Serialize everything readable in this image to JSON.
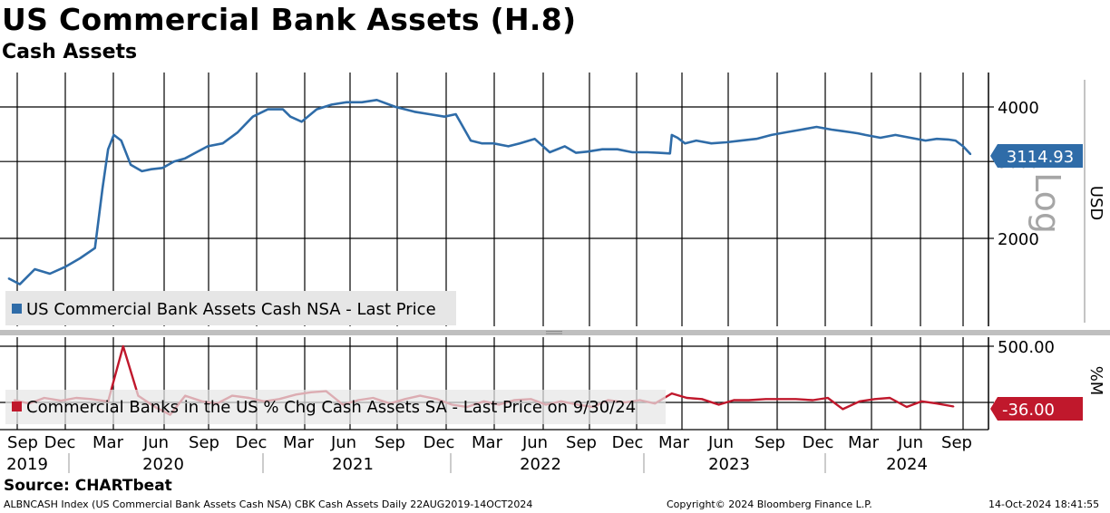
{
  "header": {
    "title": "US Commercial Bank Assets (H.8)",
    "subtitle": "Cash Assets"
  },
  "source": "Source: CHARTbeat",
  "footer": {
    "left": "ALBNCASH Index (US Commercial Bank Assets Cash NSA) CBK Cash Assets  Daily 22AUG2019-14OCT2024",
    "center": "Copyright© 2024 Bloomberg Finance L.P.",
    "right": "14-Oct-2024 18:41:55"
  },
  "colors": {
    "upper_series": "#2f6ca8",
    "lower_series": "#c0182c",
    "lower_series_faded": "#d98a92",
    "grid": "#000000",
    "legend_bg": "#e6e6e6",
    "log_watermark": "#a6a6a6"
  },
  "chart_data": [
    {
      "type": "line",
      "panel": "upper",
      "x_labels": [
        "Sep",
        "Dec",
        "Mar",
        "Jun",
        "Sep",
        "Dec",
        "Mar",
        "Jun",
        "Sep",
        "Dec",
        "Mar",
        "Jun",
        "Sep",
        "Dec",
        "Mar",
        "Jun",
        "Sep",
        "Dec",
        "Mar",
        "Jun",
        "Sep"
      ],
      "year_labels": [
        "2019",
        "2020",
        "2021",
        "2022",
        "2023",
        "2024"
      ],
      "y_ticks": [
        2000,
        3000,
        4000
      ],
      "y_scale": "log",
      "ylabel": "USD",
      "scale_label": "Log",
      "grid": true,
      "legend_position": "bottom-left",
      "last_value_label": "3114.93",
      "series": [
        {
          "name": "US Commercial Bank Assets Cash NSA - Last Price",
          "x": [
            2019.64,
            2019.7,
            2019.78,
            2019.86,
            2019.94,
            2020.02,
            2020.1,
            2020.14,
            2020.17,
            2020.2,
            2020.24,
            2020.29,
            2020.35,
            2020.4,
            2020.46,
            2020.52,
            2020.58,
            2020.64,
            2020.7,
            2020.78,
            2020.86,
            2020.94,
            2021.02,
            2021.1,
            2021.14,
            2021.2,
            2021.28,
            2021.36,
            2021.44,
            2021.5,
            2021.52,
            2021.6,
            2021.7,
            2021.8,
            2021.88,
            2021.96,
            2022.02,
            2022.1,
            2022.16,
            2022.22,
            2022.3,
            2022.36,
            2022.44,
            2022.52,
            2022.6,
            2022.66,
            2022.72,
            2022.8,
            2022.88,
            2022.96,
            2023.04,
            2023.1,
            2023.16,
            2023.17,
            2023.2,
            2023.24,
            2023.3,
            2023.38,
            2023.46,
            2023.54,
            2023.62,
            2023.7,
            2023.78,
            2023.86,
            2023.94,
            2024.02,
            2024.08,
            2024.12,
            2024.16,
            2024.2,
            2024.28,
            2024.36,
            2024.44,
            2024.52,
            2024.58,
            2024.64,
            2024.68,
            2024.72,
            2024.76
          ],
          "values": [
            1620,
            1570,
            1700,
            1660,
            1720,
            1800,
            1900,
            2600,
            3200,
            3450,
            3350,
            2950,
            2850,
            2880,
            2900,
            3000,
            3050,
            3150,
            3250,
            3300,
            3500,
            3800,
            3950,
            3950,
            3800,
            3700,
            3950,
            4050,
            4100,
            4100,
            4100,
            4150,
            4000,
            3900,
            3850,
            3800,
            3850,
            3350,
            3300,
            3300,
            3250,
            3300,
            3380,
            3150,
            3250,
            3140,
            3160,
            3200,
            3200,
            3150,
            3150,
            3140,
            3130,
            3450,
            3400,
            3300,
            3350,
            3300,
            3320,
            3350,
            3380,
            3450,
            3500,
            3550,
            3600,
            3550,
            3520,
            3500,
            3480,
            3450,
            3400,
            3450,
            3400,
            3350,
            3380,
            3370,
            3350,
            3250,
            3114.93
          ]
        }
      ]
    },
    {
      "type": "line",
      "panel": "lower",
      "y_ticks": [
        500,
        0
      ],
      "y_tick_labels": [
        "500.00",
        ""
      ],
      "ylabel": "%M",
      "legend_position": "bottom-left",
      "last_value_label": "-36.00",
      "series": [
        {
          "name": "Commercial Banks in the US % Chg Cash Assets SA - Last Price on 9/30/24",
          "x": [
            2019.67,
            2019.75,
            2019.83,
            2019.92,
            2020.0,
            2020.08,
            2020.17,
            2020.25,
            2020.33,
            2020.42,
            2020.5,
            2020.58,
            2020.67,
            2020.75,
            2020.83,
            2020.92,
            2021.0,
            2021.08,
            2021.17,
            2021.25,
            2021.33,
            2021.42,
            2021.5,
            2021.58,
            2021.67,
            2021.75,
            2021.83,
            2021.92,
            2022.0,
            2022.08,
            2022.17,
            2022.25,
            2022.33,
            2022.42,
            2022.5,
            2022.58,
            2022.67,
            2022.75,
            2022.83,
            2022.92,
            2023.0,
            2023.08,
            2023.17,
            2023.25,
            2023.33,
            2023.42,
            2023.5,
            2023.58,
            2023.67,
            2023.75,
            2023.83,
            2023.92,
            2024.0,
            2024.08,
            2024.17,
            2024.25,
            2024.33,
            2024.42,
            2024.5,
            2024.58,
            2024.67
          ],
          "values": [
            20,
            -10,
            40,
            15,
            40,
            30,
            10,
            500,
            60,
            -40,
            -110,
            60,
            10,
            -10,
            60,
            40,
            10,
            30,
            70,
            90,
            100,
            -20,
            20,
            40,
            -10,
            30,
            60,
            30,
            -20,
            -40,
            10,
            -20,
            20,
            30,
            -20,
            10,
            -20,
            -40,
            20,
            0,
            20,
            -10,
            80,
            40,
            30,
            -20,
            20,
            20,
            30,
            30,
            30,
            20,
            40,
            -60,
            10,
            30,
            40,
            -40,
            10,
            -10,
            -36
          ]
        }
      ]
    }
  ]
}
